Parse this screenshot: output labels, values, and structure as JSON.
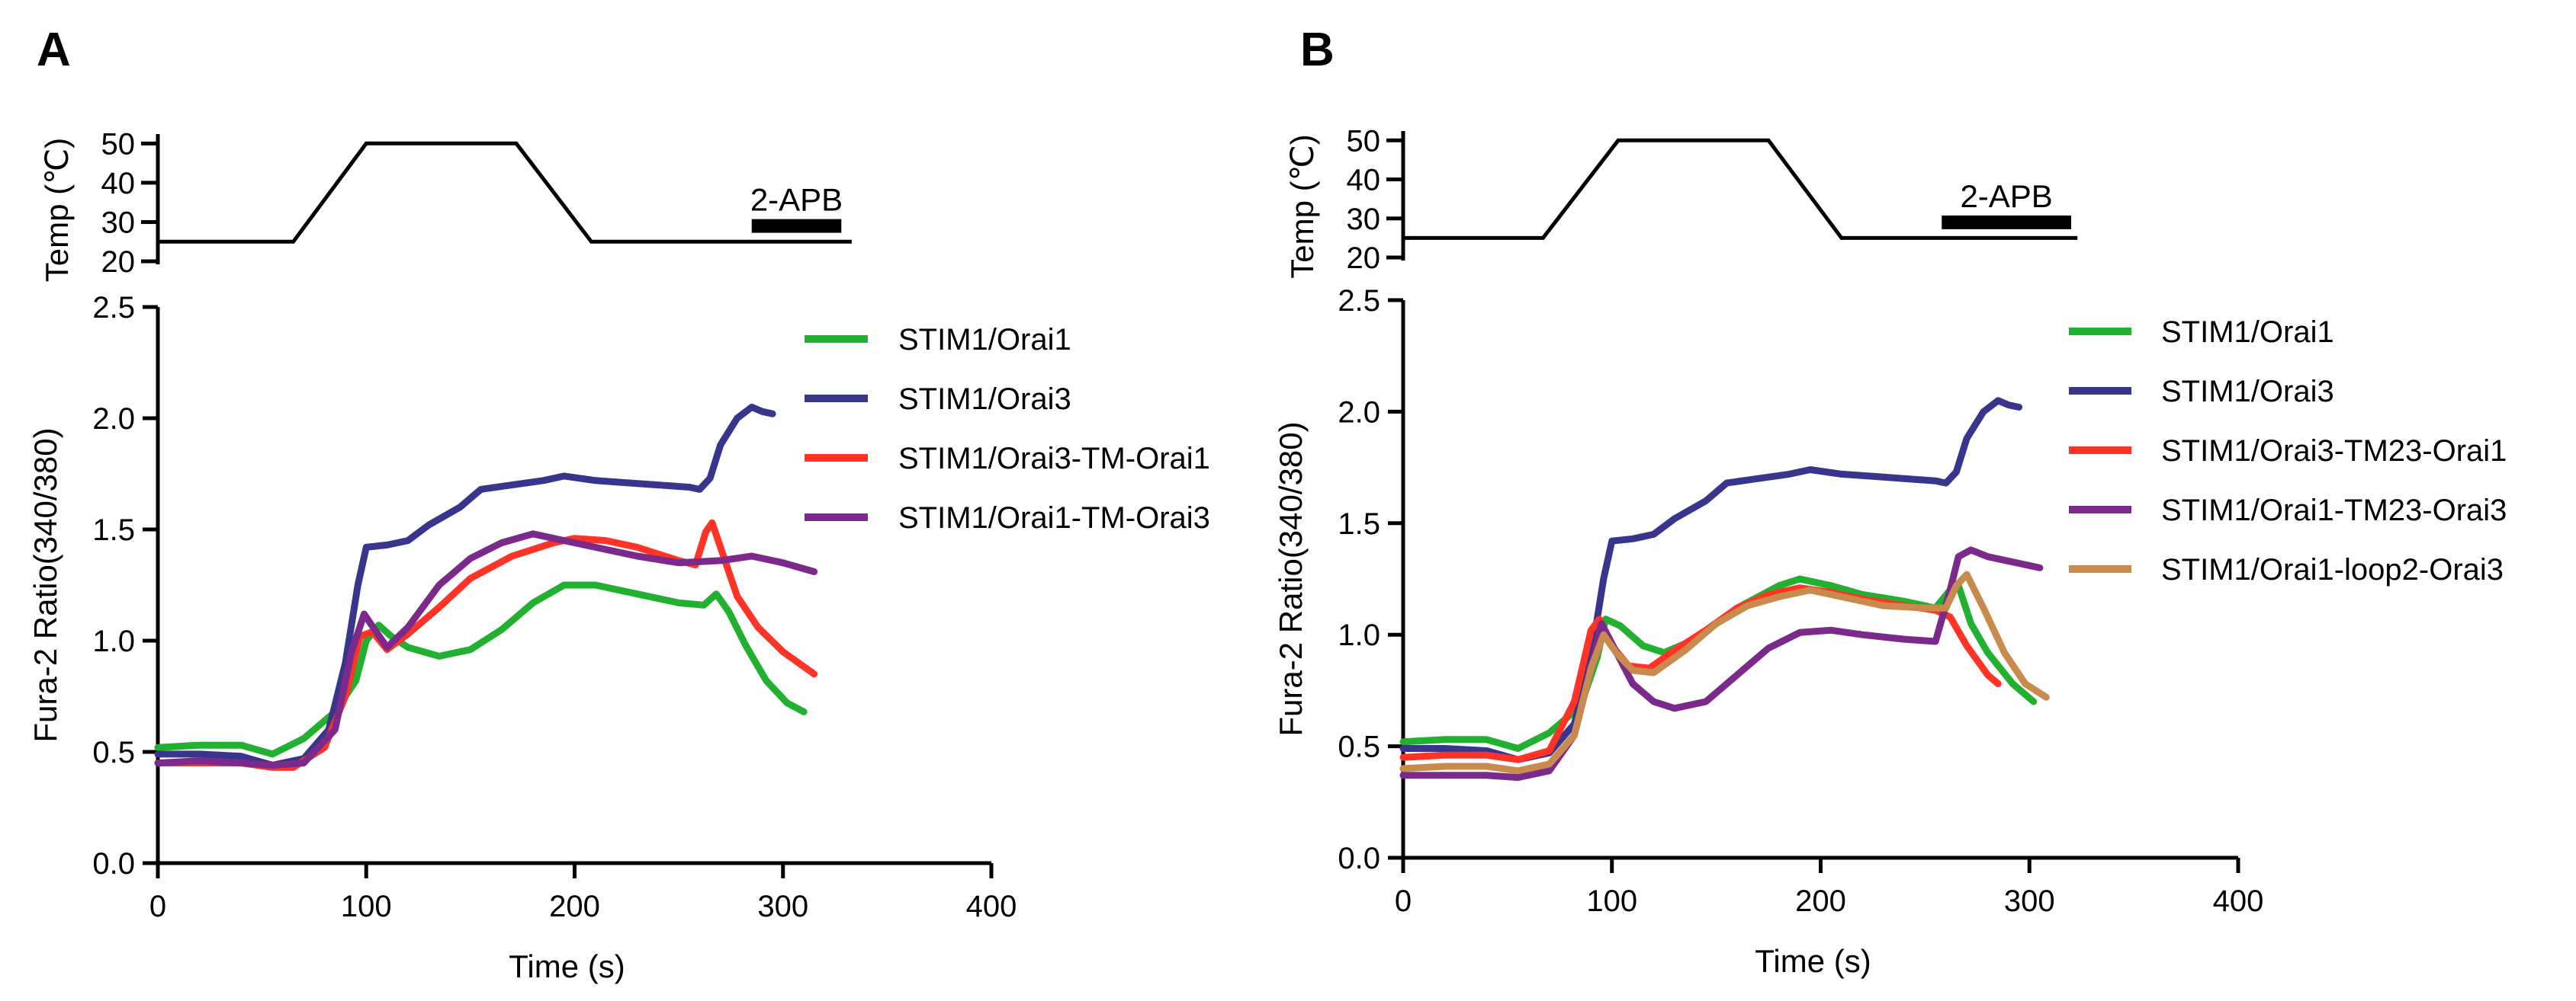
{
  "figure": {
    "colors": {
      "green": "#22b030",
      "navy": "#38358c",
      "red": "#ff3326",
      "purple": "#7b2a8c",
      "tan": "#c98a4e",
      "black": "#000000"
    }
  },
  "chart_data": [
    {
      "type": "line",
      "panel_label": "A",
      "temp_inset": {
        "ylabel": "Temp (℃)",
        "yticks": [
          "20",
          "30",
          "40",
          "50"
        ],
        "ylim": [
          20,
          52
        ],
        "trace": [
          [
            0,
            25
          ],
          [
            65,
            25
          ],
          [
            100,
            50
          ],
          [
            172,
            50
          ],
          [
            208,
            25
          ],
          [
            333,
            25
          ]
        ],
        "bar_label": "2-APB",
        "bar_range": [
          285,
          328
        ],
        "bar_level": 29
      },
      "xlabel": "Time (s)",
      "ylabel": "Fura-2 Ratio(340/380)",
      "xlim": [
        0,
        400
      ],
      "ylim": [
        0,
        2.5
      ],
      "xticks": [
        "0",
        "100",
        "200",
        "300",
        "400"
      ],
      "yticks": [
        "0.0",
        "0.5",
        "1.0",
        "1.5",
        "2.0",
        "2.5"
      ],
      "legend": "right",
      "series": [
        {
          "name": "STIM1/Orai1",
          "color": "#22b030",
          "points": [
            [
              0,
              0.52
            ],
            [
              20,
              0.53
            ],
            [
              40,
              0.53
            ],
            [
              55,
              0.49
            ],
            [
              70,
              0.56
            ],
            [
              85,
              0.68
            ],
            [
              95,
              0.82
            ],
            [
              100,
              1.0
            ],
            [
              106,
              1.07
            ],
            [
              112,
              1.02
            ],
            [
              120,
              0.97
            ],
            [
              135,
              0.93
            ],
            [
              150,
              0.96
            ],
            [
              165,
              1.05
            ],
            [
              180,
              1.17
            ],
            [
              195,
              1.25
            ],
            [
              210,
              1.25
            ],
            [
              230,
              1.21
            ],
            [
              250,
              1.17
            ],
            [
              262,
              1.16
            ],
            [
              268,
              1.21
            ],
            [
              274,
              1.13
            ],
            [
              282,
              0.98
            ],
            [
              292,
              0.82
            ],
            [
              302,
              0.72
            ],
            [
              310,
              0.68
            ]
          ]
        },
        {
          "name": "STIM1/Orai3",
          "color": "#38358c",
          "points": [
            [
              0,
              0.49
            ],
            [
              20,
              0.49
            ],
            [
              40,
              0.48
            ],
            [
              55,
              0.44
            ],
            [
              70,
              0.47
            ],
            [
              82,
              0.6
            ],
            [
              90,
              0.9
            ],
            [
              96,
              1.25
            ],
            [
              100,
              1.42
            ],
            [
              110,
              1.43
            ],
            [
              120,
              1.45
            ],
            [
              130,
              1.52
            ],
            [
              145,
              1.6
            ],
            [
              155,
              1.68
            ],
            [
              170,
              1.7
            ],
            [
              185,
              1.72
            ],
            [
              195,
              1.74
            ],
            [
              210,
              1.72
            ],
            [
              225,
              1.71
            ],
            [
              240,
              1.7
            ],
            [
              255,
              1.69
            ],
            [
              260,
              1.68
            ],
            [
              265,
              1.73
            ],
            [
              270,
              1.88
            ],
            [
              278,
              2.0
            ],
            [
              285,
              2.05
            ],
            [
              290,
              2.03
            ],
            [
              295,
              2.02
            ]
          ]
        },
        {
          "name": "STIM1/Orai3-TM-Orai1",
          "color": "#ff3326",
          "points": [
            [
              0,
              0.45
            ],
            [
              20,
              0.45
            ],
            [
              40,
              0.45
            ],
            [
              55,
              0.43
            ],
            [
              65,
              0.43
            ],
            [
              80,
              0.52
            ],
            [
              90,
              0.75
            ],
            [
              97,
              1.02
            ],
            [
              103,
              1.04
            ],
            [
              110,
              0.96
            ],
            [
              120,
              1.03
            ],
            [
              135,
              1.15
            ],
            [
              150,
              1.28
            ],
            [
              170,
              1.38
            ],
            [
              190,
              1.44
            ],
            [
              200,
              1.46
            ],
            [
              215,
              1.45
            ],
            [
              230,
              1.42
            ],
            [
              250,
              1.36
            ],
            [
              258,
              1.34
            ],
            [
              263,
              1.49
            ],
            [
              266,
              1.53
            ],
            [
              270,
              1.42
            ],
            [
              278,
              1.2
            ],
            [
              288,
              1.06
            ],
            [
              300,
              0.95
            ],
            [
              315,
              0.85
            ]
          ]
        },
        {
          "name": "STIM1/Orai1-TM-Orai3",
          "color": "#7b2a8c",
          "points": [
            [
              0,
              0.45
            ],
            [
              20,
              0.46
            ],
            [
              40,
              0.45
            ],
            [
              55,
              0.44
            ],
            [
              70,
              0.45
            ],
            [
              85,
              0.6
            ],
            [
              93,
              0.95
            ],
            [
              99,
              1.12
            ],
            [
              104,
              1.05
            ],
            [
              110,
              0.97
            ],
            [
              120,
              1.06
            ],
            [
              135,
              1.25
            ],
            [
              150,
              1.37
            ],
            [
              165,
              1.44
            ],
            [
              180,
              1.48
            ],
            [
              195,
              1.45
            ],
            [
              210,
              1.42
            ],
            [
              230,
              1.38
            ],
            [
              250,
              1.35
            ],
            [
              270,
              1.36
            ],
            [
              285,
              1.38
            ],
            [
              300,
              1.35
            ],
            [
              315,
              1.31
            ]
          ]
        }
      ]
    },
    {
      "type": "line",
      "panel_label": "B",
      "temp_inset": {
        "ylabel": "Temp (℃)",
        "yticks": [
          "20",
          "30",
          "40",
          "50"
        ],
        "ylim": [
          20,
          52
        ],
        "trace": [
          [
            0,
            25
          ],
          [
            67,
            25
          ],
          [
            103,
            50
          ],
          [
            175,
            50
          ],
          [
            210,
            25
          ],
          [
            323,
            25
          ]
        ],
        "bar_label": "2-APB",
        "bar_range": [
          258,
          320
        ],
        "bar_level": 29
      },
      "xlabel": "Time (s)",
      "ylabel": "Fura-2 Ratio(340/380)",
      "xlim": [
        0,
        400
      ],
      "ylim": [
        0,
        2.5
      ],
      "xticks": [
        "0",
        "100",
        "200",
        "300",
        "400"
      ],
      "yticks": [
        "0.0",
        "0.5",
        "1.0",
        "1.5",
        "2.0",
        "2.5"
      ],
      "legend": "right",
      "series": [
        {
          "name": "STIM1/Orai1",
          "color": "#22b030",
          "points": [
            [
              0,
              0.52
            ],
            [
              20,
              0.53
            ],
            [
              40,
              0.53
            ],
            [
              55,
              0.49
            ],
            [
              70,
              0.56
            ],
            [
              85,
              0.68
            ],
            [
              93,
              0.9
            ],
            [
              97,
              1.07
            ],
            [
              104,
              1.04
            ],
            [
              115,
              0.95
            ],
            [
              125,
              0.92
            ],
            [
              140,
              0.98
            ],
            [
              160,
              1.12
            ],
            [
              180,
              1.22
            ],
            [
              190,
              1.25
            ],
            [
              205,
              1.22
            ],
            [
              220,
              1.18
            ],
            [
              240,
              1.15
            ],
            [
              255,
              1.12
            ],
            [
              262,
              1.2
            ],
            [
              266,
              1.22
            ],
            [
              272,
              1.05
            ],
            [
              280,
              0.92
            ],
            [
              292,
              0.78
            ],
            [
              302,
              0.7
            ]
          ]
        },
        {
          "name": "STIM1/Orai3",
          "color": "#38358c",
          "points": [
            [
              0,
              0.49
            ],
            [
              20,
              0.49
            ],
            [
              40,
              0.48
            ],
            [
              55,
              0.44
            ],
            [
              70,
              0.47
            ],
            [
              82,
              0.6
            ],
            [
              90,
              0.9
            ],
            [
              96,
              1.25
            ],
            [
              100,
              1.42
            ],
            [
              110,
              1.43
            ],
            [
              120,
              1.45
            ],
            [
              130,
              1.52
            ],
            [
              145,
              1.6
            ],
            [
              155,
              1.68
            ],
            [
              170,
              1.7
            ],
            [
              185,
              1.72
            ],
            [
              195,
              1.74
            ],
            [
              210,
              1.72
            ],
            [
              225,
              1.71
            ],
            [
              240,
              1.7
            ],
            [
              255,
              1.69
            ],
            [
              260,
              1.68
            ],
            [
              265,
              1.73
            ],
            [
              270,
              1.88
            ],
            [
              278,
              2.0
            ],
            [
              285,
              2.05
            ],
            [
              290,
              2.03
            ],
            [
              295,
              2.02
            ]
          ]
        },
        {
          "name": "STIM1/Orai3-TM23-Orai1",
          "color": "#ff3326",
          "points": [
            [
              0,
              0.45
            ],
            [
              20,
              0.46
            ],
            [
              40,
              0.46
            ],
            [
              55,
              0.44
            ],
            [
              70,
              0.48
            ],
            [
              82,
              0.7
            ],
            [
              90,
              1.02
            ],
            [
              94,
              1.07
            ],
            [
              100,
              0.95
            ],
            [
              108,
              0.86
            ],
            [
              118,
              0.85
            ],
            [
              130,
              0.93
            ],
            [
              145,
              1.02
            ],
            [
              160,
              1.12
            ],
            [
              175,
              1.18
            ],
            [
              190,
              1.21
            ],
            [
              205,
              1.19
            ],
            [
              220,
              1.16
            ],
            [
              240,
              1.13
            ],
            [
              255,
              1.11
            ],
            [
              262,
              1.08
            ],
            [
              270,
              0.95
            ],
            [
              280,
              0.82
            ],
            [
              285,
              0.78
            ]
          ]
        },
        {
          "name": "STIM1/Orai1-TM23-Orai3",
          "color": "#7b2a8c",
          "points": [
            [
              0,
              0.37
            ],
            [
              20,
              0.37
            ],
            [
              40,
              0.37
            ],
            [
              55,
              0.36
            ],
            [
              70,
              0.39
            ],
            [
              82,
              0.55
            ],
            [
              90,
              0.85
            ],
            [
              95,
              1.05
            ],
            [
              100,
              0.96
            ],
            [
              110,
              0.78
            ],
            [
              120,
              0.7
            ],
            [
              130,
              0.67
            ],
            [
              145,
              0.7
            ],
            [
              160,
              0.82
            ],
            [
              175,
              0.94
            ],
            [
              190,
              1.01
            ],
            [
              205,
              1.02
            ],
            [
              220,
              1.0
            ],
            [
              240,
              0.98
            ],
            [
              255,
              0.97
            ],
            [
              262,
              1.2
            ],
            [
              266,
              1.35
            ],
            [
              272,
              1.38
            ],
            [
              280,
              1.35
            ],
            [
              295,
              1.32
            ],
            [
              305,
              1.3
            ]
          ]
        },
        {
          "name": "STIM1/Orai1-loop2-Orai3",
          "color": "#c98a4e",
          "points": [
            [
              0,
              0.4
            ],
            [
              20,
              0.41
            ],
            [
              40,
              0.41
            ],
            [
              55,
              0.39
            ],
            [
              70,
              0.42
            ],
            [
              82,
              0.55
            ],
            [
              90,
              0.85
            ],
            [
              96,
              1.0
            ],
            [
              102,
              0.92
            ],
            [
              110,
              0.84
            ],
            [
              120,
              0.83
            ],
            [
              135,
              0.93
            ],
            [
              150,
              1.05
            ],
            [
              165,
              1.13
            ],
            [
              180,
              1.17
            ],
            [
              195,
              1.2
            ],
            [
              210,
              1.17
            ],
            [
              230,
              1.13
            ],
            [
              250,
              1.12
            ],
            [
              260,
              1.12
            ],
            [
              265,
              1.22
            ],
            [
              270,
              1.27
            ],
            [
              278,
              1.12
            ],
            [
              288,
              0.92
            ],
            [
              298,
              0.78
            ],
            [
              308,
              0.72
            ]
          ]
        }
      ]
    }
  ]
}
